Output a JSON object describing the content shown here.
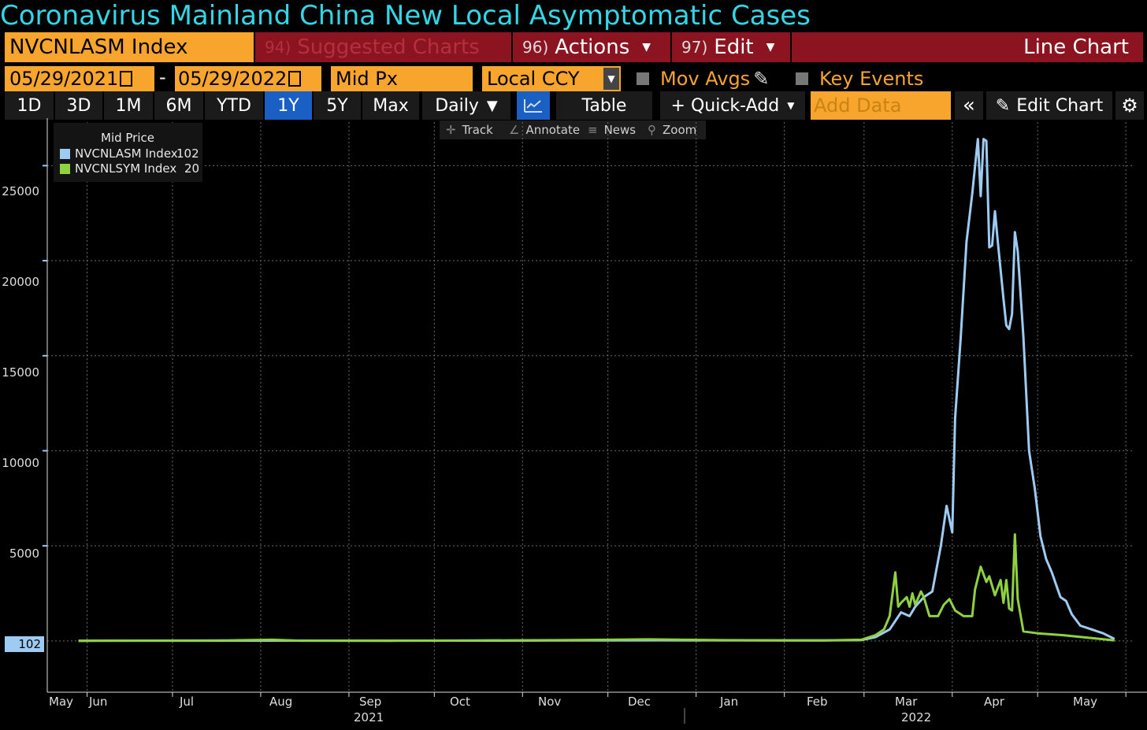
{
  "title": "Coronavirus Mainland China New Local Asymptomatic Cases",
  "toolbar": {
    "ticker": "NVCNLASM Index",
    "suggested_num": "94)",
    "suggested": "Suggested Charts",
    "actions_num": "96)",
    "actions": "Actions",
    "edit_num": "97)",
    "edit": "Edit",
    "chart_type": "Line Chart",
    "start_date": "05/29/2021",
    "date_sep": "-",
    "end_date": "05/29/2022",
    "field": "Mid Px",
    "currency": "Local CCY",
    "mov_avgs": "Mov Avgs",
    "key_events": "Key Events",
    "periods": [
      "1D",
      "3D",
      "1M",
      "6M",
      "YTD",
      "1Y",
      "5Y",
      "Max"
    ],
    "active_period": "1Y",
    "frequency": "Daily",
    "table": "Table",
    "quick_add": "+ Quick-Add",
    "add_data_placeholder": "Add Data",
    "edit_chart": "Edit Chart",
    "track": "Track",
    "annotate": "Annotate",
    "news": "News",
    "zoom": "Zoom"
  },
  "colors": {
    "series1": "#9ecbf2",
    "series2": "#8fd13f",
    "accent": "#f7a52d",
    "title": "#33d6e6"
  },
  "chart_data": {
    "type": "line",
    "legend_title": "Mid Price",
    "legend_position": "top-left",
    "grid": true,
    "ylim": [
      -2700,
      27500
    ],
    "yticks": [
      5000,
      10000,
      15000,
      20000,
      25000
    ],
    "current_value_label": "102",
    "x_month_labels": [
      {
        "label": "May",
        "date": "2021-05-25"
      },
      {
        "label": "Jun",
        "date": "2021-06-08"
      },
      {
        "label": "Jul",
        "date": "2021-07-08"
      },
      {
        "label": "Aug",
        "date": "2021-08-08"
      },
      {
        "label": "Sep",
        "date": "2021-09-08"
      },
      {
        "label": "Oct",
        "date": "2021-10-08"
      },
      {
        "label": "Nov",
        "date": "2021-11-08"
      },
      {
        "label": "Dec",
        "date": "2021-12-08"
      },
      {
        "label": "Jan",
        "date": "2022-01-08"
      },
      {
        "label": "Feb",
        "date": "2022-02-08"
      },
      {
        "label": "Mar",
        "date": "2022-03-08"
      },
      {
        "label": "Apr",
        "date": "2022-04-08"
      },
      {
        "label": "May",
        "date": "2022-05-08"
      }
    ],
    "x_year_labels": [
      {
        "label": "2021",
        "date": "2021-09-08"
      },
      {
        "label": "2022",
        "date": "2022-03-12"
      }
    ],
    "series": [
      {
        "name": "NVCNLASM Index",
        "last": "102",
        "color": "#9ecbf2",
        "points": [
          [
            "2021-05-29",
            5
          ],
          [
            "2021-07-15",
            10
          ],
          [
            "2021-08-10",
            15
          ],
          [
            "2021-09-15",
            5
          ],
          [
            "2021-10-20",
            15
          ],
          [
            "2021-11-20",
            20
          ],
          [
            "2021-12-20",
            30
          ],
          [
            "2022-01-20",
            20
          ],
          [
            "2022-02-15",
            20
          ],
          [
            "2022-02-28",
            40
          ],
          [
            "2022-03-05",
            200
          ],
          [
            "2022-03-10",
            600
          ],
          [
            "2022-03-14",
            1500
          ],
          [
            "2022-03-17",
            1300
          ],
          [
            "2022-03-19",
            1800
          ],
          [
            "2022-03-22",
            2300
          ],
          [
            "2022-03-25",
            2600
          ],
          [
            "2022-03-28",
            5000
          ],
          [
            "2022-03-30",
            7100
          ],
          [
            "2022-04-01",
            5700
          ],
          [
            "2022-04-02",
            11700
          ],
          [
            "2022-04-04",
            16000
          ],
          [
            "2022-04-06",
            21000
          ],
          [
            "2022-04-08",
            23500
          ],
          [
            "2022-04-10",
            26400
          ],
          [
            "2022-04-11",
            23400
          ],
          [
            "2022-04-12",
            26400
          ],
          [
            "2022-04-13",
            26300
          ],
          [
            "2022-04-14",
            20700
          ],
          [
            "2022-04-15",
            20800
          ],
          [
            "2022-04-16",
            22600
          ],
          [
            "2022-04-17",
            21000
          ],
          [
            "2022-04-19",
            18000
          ],
          [
            "2022-04-20",
            16600
          ],
          [
            "2022-04-21",
            16400
          ],
          [
            "2022-04-22",
            17200
          ],
          [
            "2022-04-23",
            21500
          ],
          [
            "2022-04-24",
            20500
          ],
          [
            "2022-04-26",
            16000
          ],
          [
            "2022-04-28",
            10000
          ],
          [
            "2022-04-30",
            8000
          ],
          [
            "2022-05-02",
            5500
          ],
          [
            "2022-05-04",
            4300
          ],
          [
            "2022-05-06",
            3600
          ],
          [
            "2022-05-09",
            2300
          ],
          [
            "2022-05-11",
            2100
          ],
          [
            "2022-05-13",
            1400
          ],
          [
            "2022-05-16",
            800
          ],
          [
            "2022-05-20",
            600
          ],
          [
            "2022-05-24",
            400
          ],
          [
            "2022-05-28",
            102
          ]
        ]
      },
      {
        "name": "NVCNLSYM Index",
        "last": "20",
        "color": "#8fd13f",
        "points": [
          [
            "2021-05-29",
            5
          ],
          [
            "2021-07-20",
            20
          ],
          [
            "2021-08-05",
            60
          ],
          [
            "2021-08-15",
            10
          ],
          [
            "2021-10-01",
            15
          ],
          [
            "2021-11-15",
            40
          ],
          [
            "2021-12-15",
            80
          ],
          [
            "2022-01-10",
            40
          ],
          [
            "2022-02-15",
            20
          ],
          [
            "2022-02-28",
            60
          ],
          [
            "2022-03-05",
            300
          ],
          [
            "2022-03-08",
            600
          ],
          [
            "2022-03-10",
            1300
          ],
          [
            "2022-03-12",
            3600
          ],
          [
            "2022-03-13",
            1800
          ],
          [
            "2022-03-14",
            2000
          ],
          [
            "2022-03-16",
            2300
          ],
          [
            "2022-03-17",
            1800
          ],
          [
            "2022-03-18",
            2500
          ],
          [
            "2022-03-19",
            1900
          ],
          [
            "2022-03-21",
            2600
          ],
          [
            "2022-03-22",
            2300
          ],
          [
            "2022-03-24",
            1300
          ],
          [
            "2022-03-27",
            1300
          ],
          [
            "2022-03-29",
            1900
          ],
          [
            "2022-03-31",
            2200
          ],
          [
            "2022-04-02",
            1600
          ],
          [
            "2022-04-05",
            1300
          ],
          [
            "2022-04-08",
            1300
          ],
          [
            "2022-04-09",
            2700
          ],
          [
            "2022-04-11",
            3900
          ],
          [
            "2022-04-13",
            3100
          ],
          [
            "2022-04-14",
            3400
          ],
          [
            "2022-04-16",
            2400
          ],
          [
            "2022-04-18",
            3200
          ],
          [
            "2022-04-19",
            2000
          ],
          [
            "2022-04-20",
            3200
          ],
          [
            "2022-04-21",
            1700
          ],
          [
            "2022-04-22",
            1600
          ],
          [
            "2022-04-23",
            5600
          ],
          [
            "2022-04-24",
            2200
          ],
          [
            "2022-04-26",
            500
          ],
          [
            "2022-05-01",
            400
          ],
          [
            "2022-05-10",
            300
          ],
          [
            "2022-05-20",
            150
          ],
          [
            "2022-05-28",
            20
          ]
        ]
      }
    ]
  }
}
